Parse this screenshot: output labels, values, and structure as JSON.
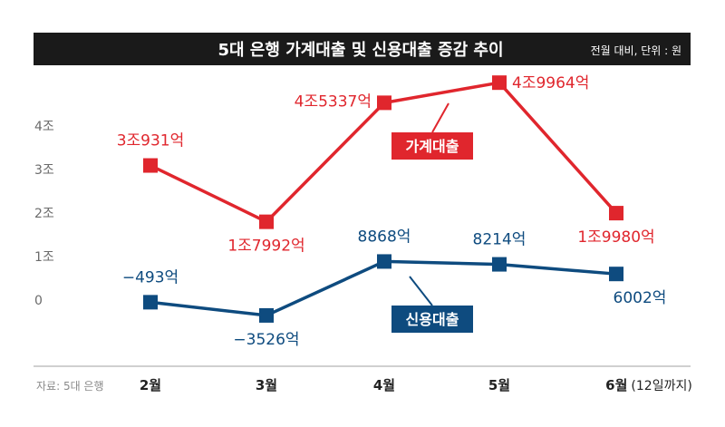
{
  "header": {
    "title": "5대 은행 가계대출 및 신용대출 증감 추이",
    "unit_note": "전월 대비, 단위 : 원"
  },
  "source": "자료: 5대 은행",
  "chart_data": {
    "type": "line",
    "title": "5대 은행 가계대출 및 신용대출 증감 추이",
    "subtitle": "전월 대비, 단위 : 원",
    "categories": [
      "2월",
      "3월",
      "4월",
      "5월",
      "6월"
    ],
    "category_notes": [
      "",
      "",
      "",
      "",
      "(12일까지)"
    ],
    "yticks": [
      "0",
      "1조",
      "2조",
      "3조",
      "4조"
    ],
    "ylim": [
      -1.5,
      5
    ],
    "grid": false,
    "legend": "inline",
    "series": [
      {
        "name": "가계대출",
        "color": "#e0262d",
        "values": [
          3.0931,
          1.7992,
          4.5337,
          4.9964,
          1.998
        ],
        "labels": [
          "3조931억",
          "1조7992억",
          "4조5337억",
          "4조9964억",
          "1조9980억"
        ]
      },
      {
        "name": "신용대출",
        "color": "#0e4b7f",
        "values": [
          -0.0493,
          -0.3526,
          0.8868,
          0.8214,
          0.6002
        ],
        "labels": [
          "−493억",
          "−3526억",
          "8868억",
          "8214억",
          "6002억"
        ]
      }
    ]
  },
  "colors": {
    "header_bg": "#1a1a1a",
    "axis": "#b5b5b5"
  }
}
